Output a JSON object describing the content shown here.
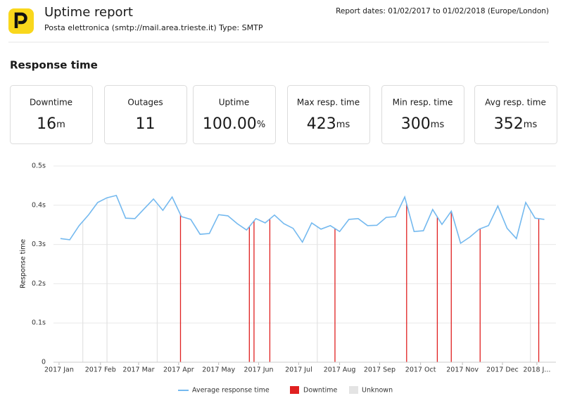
{
  "header": {
    "title": "Uptime report",
    "subtitle": "Posta elettronica (smtp://mail.area.trieste.it) Type: SMTP",
    "report_dates": "Report dates: 01/02/2017 to 01/02/2018 (Europe/London)"
  },
  "section_title": "Response time",
  "stats": [
    {
      "label": "Downtime",
      "value": 16,
      "unit": "m"
    },
    {
      "label": "Outages",
      "value": 11
    },
    {
      "label": "Uptime",
      "value": "100.00",
      "unit": "%"
    },
    {
      "label": "Max resp. time",
      "value": 423,
      "unit": "ms"
    },
    {
      "label": "Min resp. time",
      "value": 300,
      "unit": "ms"
    },
    {
      "label": "Avg resp. time",
      "value": 352,
      "unit": "ms"
    }
  ],
  "chart_data": {
    "type": "line",
    "y_label": "Response time",
    "xlim": [
      -0.75,
      53.25
    ],
    "xticks": [
      {
        "value": -0.15,
        "label": "2017 Jan"
      },
      {
        "value": 4.3,
        "label": "2017 Feb"
      },
      {
        "value": 8.4,
        "label": "2017 Mar"
      },
      {
        "value": 12.7,
        "label": "2017 Apr"
      },
      {
        "value": 17.0,
        "label": "2017 May"
      },
      {
        "value": 21.3,
        "label": "2017 Jun"
      },
      {
        "value": 25.6,
        "label": "2017 Jul"
      },
      {
        "value": 30.0,
        "label": "2017 Aug"
      },
      {
        "value": 34.3,
        "label": "2017 Sep"
      },
      {
        "value": 38.7,
        "label": "2017 Oct"
      },
      {
        "value": 43.2,
        "label": "2017 Nov"
      },
      {
        "value": 47.5,
        "label": "2017 Dec"
      },
      {
        "value": 51.2,
        "label": "2018 J..."
      }
    ],
    "ylim": [
      0,
      0.5
    ],
    "yticks": [
      0,
      {
        "value": 0.1,
        "label": "0.1s"
      },
      {
        "value": 0.2,
        "label": "0.2s"
      },
      {
        "value": 0.3,
        "label": "0.3s"
      },
      {
        "value": 0.4,
        "label": "0.4s"
      },
      {
        "value": 0.5,
        "label": "0.5s"
      }
    ],
    "grid": true,
    "series": [
      {
        "name": "Average response time",
        "color": "#74b9ef",
        "values": [
          0.315,
          0.312,
          0.348,
          0.375,
          0.407,
          0.419,
          0.425,
          0.367,
          0.366,
          0.391,
          0.416,
          0.387,
          0.421,
          0.371,
          0.364,
          0.326,
          0.328,
          0.376,
          0.373,
          0.353,
          0.337,
          0.366,
          0.355,
          0.375,
          0.353,
          0.341,
          0.306,
          0.355,
          0.339,
          0.348,
          0.333,
          0.364,
          0.366,
          0.348,
          0.349,
          0.369,
          0.371,
          0.421,
          0.333,
          0.335,
          0.389,
          0.351,
          0.385,
          0.303,
          0.319,
          0.339,
          0.348,
          0.398,
          0.341,
          0.315,
          0.407,
          0.367,
          0.364
        ]
      }
    ],
    "events": [
      {
        "name": "Downtime",
        "color": "#e02020",
        "x": [
          12.9,
          20.3,
          20.8,
          22.5,
          29.5,
          37.2,
          40.5,
          42.0,
          45.1,
          51.4
        ]
      },
      {
        "name": "Unknown",
        "color": "#e4e4e4",
        "x": [
          2.4,
          5.0,
          10.4,
          27.6,
          50.5
        ]
      }
    ]
  }
}
